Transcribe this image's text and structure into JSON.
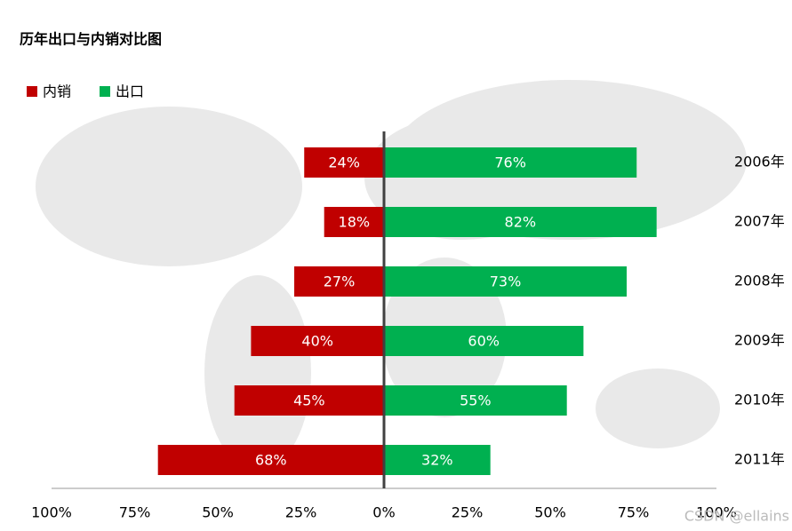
{
  "chart_data": {
    "type": "diverging-bar",
    "title": "历年出口与内销对比图",
    "categories": [
      "2006年",
      "2007年",
      "2008年",
      "2009年",
      "2010年",
      "2011年"
    ],
    "series": [
      {
        "name": "内销",
        "color": "#c00000",
        "values": [
          24,
          18,
          27,
          40,
          45,
          68
        ],
        "value_labels": [
          "24%",
          "18%",
          "27%",
          "40%",
          "45%",
          "68%"
        ]
      },
      {
        "name": "出口",
        "color": "#00b050",
        "values": [
          76,
          82,
          73,
          60,
          55,
          32
        ],
        "value_labels": [
          "76%",
          "82%",
          "73%",
          "60%",
          "55%",
          "32%"
        ]
      }
    ],
    "xlim": [
      -100,
      100
    ],
    "xticks": [
      {
        "value": -100,
        "label": "100%"
      },
      {
        "value": -75,
        "label": "75%"
      },
      {
        "value": -50,
        "label": "50%"
      },
      {
        "value": -25,
        "label": "25%"
      },
      {
        "value": 0,
        "label": "0%"
      },
      {
        "value": 25,
        "label": "25%"
      },
      {
        "value": 50,
        "label": "50%"
      },
      {
        "value": 75,
        "label": "75%"
      },
      {
        "value": 100,
        "label": "100%"
      }
    ],
    "legend": "top-left",
    "watermark": "CSDN @ellains"
  }
}
